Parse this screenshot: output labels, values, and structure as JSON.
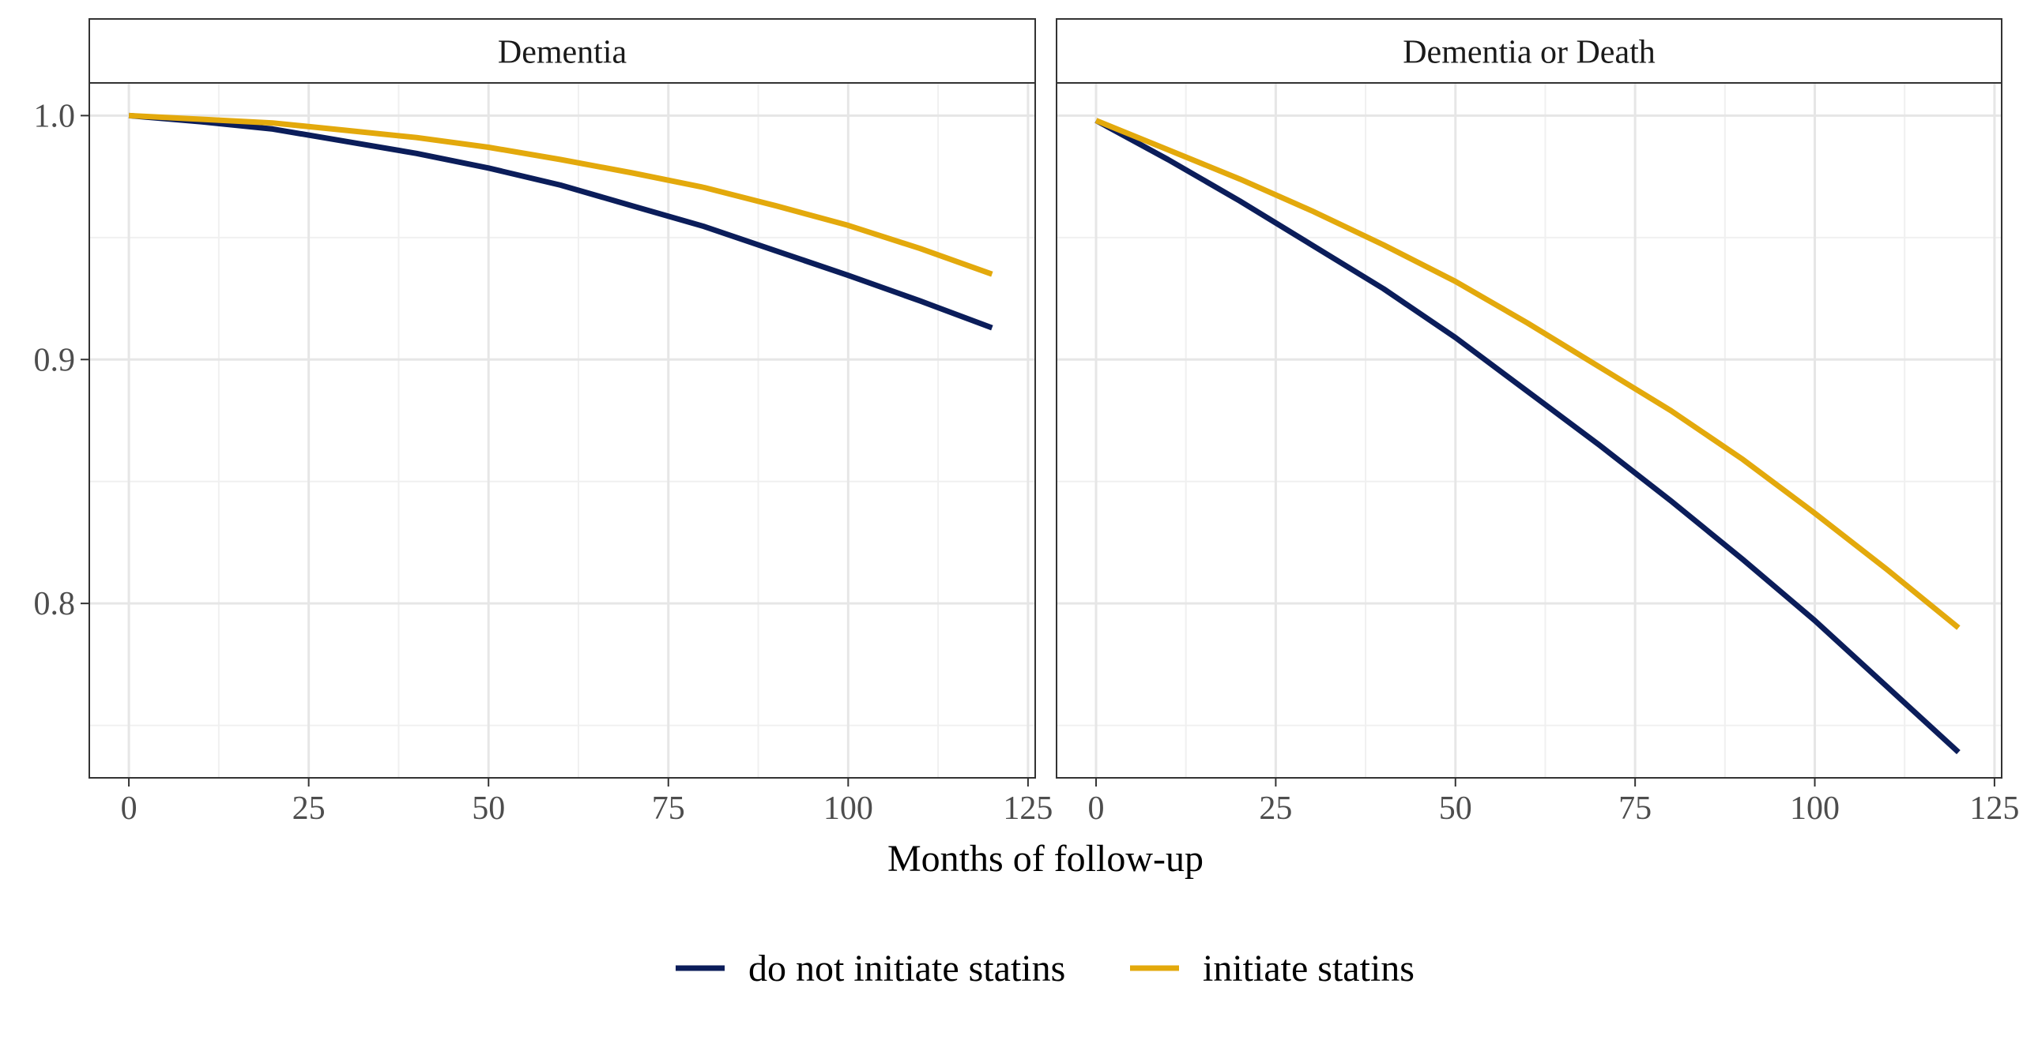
{
  "chart_data": {
    "type": "line",
    "xlabel": "Months of follow-up",
    "ylabel": "",
    "xlim": [
      -5.5,
      126
    ],
    "ylim": [
      0.7285,
      1.0134
    ],
    "x_ticks": [
      0,
      25,
      50,
      75,
      100,
      125
    ],
    "y_ticks": [
      0.8,
      0.9,
      1.0
    ],
    "x_tick_labels": [
      "0",
      "25",
      "50",
      "75",
      "100",
      "125"
    ],
    "y_tick_labels": [
      "0.8",
      "0.9",
      "1.0"
    ],
    "grid": true,
    "legend": {
      "position": "bottom",
      "entries": [
        "do not initiate statins",
        "initiate statins"
      ]
    },
    "colors": {
      "do not initiate statins": "#0b1d5a",
      "initiate statins": "#e3a90c"
    },
    "panels": [
      {
        "title": "Dementia",
        "series": [
          {
            "name": "do not initiate statins",
            "x": [
              0,
              10,
              20,
              30,
              40,
              50,
              60,
              70,
              80,
              90,
              100,
              110,
              120
            ],
            "y": [
              1.0,
              0.9975,
              0.9945,
              0.9895,
              0.9845,
              0.9785,
              0.9715,
              0.963,
              0.9545,
              0.9445,
              0.9345,
              0.924,
              0.913
            ]
          },
          {
            "name": "initiate statins",
            "x": [
              0,
              10,
              20,
              30,
              40,
              50,
              60,
              70,
              80,
              90,
              100,
              110,
              120
            ],
            "y": [
              1.0,
              0.9985,
              0.997,
              0.994,
              0.991,
              0.987,
              0.982,
              0.9765,
              0.9705,
              0.963,
              0.955,
              0.9455,
              0.935
            ]
          }
        ]
      },
      {
        "title": "Dementia or Death",
        "series": [
          {
            "name": "do not initiate statins",
            "x": [
              0,
              10,
              20,
              30,
              40,
              50,
              60,
              70,
              80,
              90,
              100,
              110,
              120
            ],
            "y": [
              0.998,
              0.982,
              0.965,
              0.947,
              0.929,
              0.909,
              0.887,
              0.865,
              0.842,
              0.818,
              0.793,
              0.766,
              0.739
            ]
          },
          {
            "name": "initiate statins",
            "x": [
              0,
              10,
              20,
              30,
              40,
              50,
              60,
              70,
              80,
              90,
              100,
              110,
              120
            ],
            "y": [
              0.998,
              0.986,
              0.974,
              0.961,
              0.947,
              0.932,
              0.915,
              0.897,
              0.879,
              0.859,
              0.837,
              0.814,
              0.79
            ]
          }
        ]
      }
    ]
  }
}
